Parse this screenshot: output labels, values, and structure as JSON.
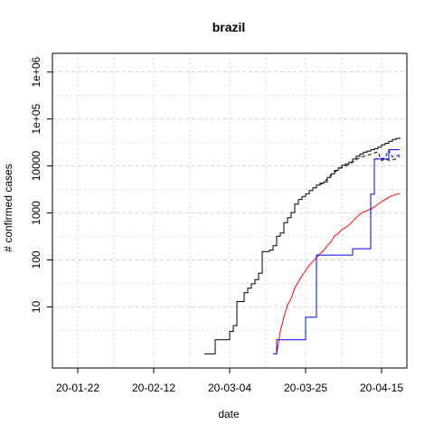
{
  "chart_data": {
    "type": "line",
    "title": "brazil",
    "xlabel": "date",
    "ylabel": "# confirmed cases",
    "x_ticks": [
      "20-01-22",
      "20-02-12",
      "20-03-04",
      "20-03-25",
      "20-04-15"
    ],
    "y_ticks": [
      "10",
      "100",
      "1000",
      "10000",
      "1e+05",
      "1e+06"
    ],
    "y_scale": "log",
    "ylim": [
      0.5,
      2500000
    ],
    "xlim": [
      "2020-01-22",
      "2020-04-20"
    ],
    "grid": true,
    "series": [
      {
        "color": "#000000",
        "style": "step",
        "points": [
          [
            "2020-02-26",
            1
          ],
          [
            "2020-02-29",
            2
          ],
          [
            "2020-03-04",
            3
          ],
          [
            "2020-03-05",
            4
          ],
          [
            "2020-03-06",
            13
          ],
          [
            "2020-03-07",
            13
          ],
          [
            "2020-03-08",
            20
          ],
          [
            "2020-03-09",
            25
          ],
          [
            "2020-03-10",
            31
          ],
          [
            "2020-03-11",
            38
          ],
          [
            "2020-03-12",
            52
          ],
          [
            "2020-03-13",
            151
          ],
          [
            "2020-03-14",
            151
          ],
          [
            "2020-03-15",
            162
          ],
          [
            "2020-03-16",
            200
          ],
          [
            "2020-03-17",
            321
          ],
          [
            "2020-03-18",
            372
          ],
          [
            "2020-03-19",
            621
          ],
          [
            "2020-03-20",
            793
          ],
          [
            "2020-03-21",
            1021
          ],
          [
            "2020-03-22",
            1546
          ],
          [
            "2020-03-23",
            1924
          ],
          [
            "2020-03-24",
            2247
          ],
          [
            "2020-03-25",
            2554
          ],
          [
            "2020-03-26",
            2985
          ],
          [
            "2020-03-27",
            3417
          ],
          [
            "2020-03-28",
            3904
          ],
          [
            "2020-03-29",
            4256
          ],
          [
            "2020-03-30",
            4579
          ],
          [
            "2020-03-31",
            5717
          ],
          [
            "2020-04-01",
            6836
          ],
          [
            "2020-04-02",
            8044
          ],
          [
            "2020-04-03",
            9056
          ],
          [
            "2020-04-04",
            10360
          ],
          [
            "2020-04-05",
            11130
          ],
          [
            "2020-04-06",
            12161
          ],
          [
            "2020-04-07",
            14034
          ],
          [
            "2020-04-08",
            16170
          ],
          [
            "2020-04-09",
            18092
          ],
          [
            "2020-04-10",
            19638
          ],
          [
            "2020-04-11",
            20727
          ],
          [
            "2020-04-12",
            22192
          ],
          [
            "2020-04-13",
            23430
          ],
          [
            "2020-04-14",
            25262
          ],
          [
            "2020-04-15",
            28320
          ],
          [
            "2020-04-16",
            30425
          ],
          [
            "2020-04-17",
            33682
          ],
          [
            "2020-04-18",
            36658
          ],
          [
            "2020-04-19",
            38654
          ],
          [
            "2020-04-20",
            40743
          ]
        ]
      },
      {
        "color": "#000000",
        "style": "dashed",
        "points": [
          [
            "2020-03-29",
            4050
          ],
          [
            "2020-03-30",
            4400
          ],
          [
            "2020-03-31",
            5400
          ],
          [
            "2020-04-01",
            6400
          ],
          [
            "2020-04-02",
            7400
          ],
          [
            "2020-04-03",
            8300
          ],
          [
            "2020-04-04",
            9400
          ],
          [
            "2020-04-05",
            10000
          ],
          [
            "2020-04-06",
            10700
          ],
          [
            "2020-04-07",
            12100
          ],
          [
            "2020-04-08",
            13600
          ],
          [
            "2020-04-09",
            15000
          ],
          [
            "2020-04-10",
            16000
          ],
          [
            "2020-04-11",
            17000
          ],
          [
            "2020-04-12",
            17700
          ],
          [
            "2020-04-13",
            19000
          ],
          [
            "2020-04-14",
            20000
          ],
          [
            "2020-04-15",
            13000
          ],
          [
            "2020-04-16",
            14000
          ],
          [
            "2020-04-17",
            13200
          ],
          [
            "2020-04-18",
            13500
          ],
          [
            "2020-04-19",
            14200
          ],
          [
            "2020-04-20",
            16000
          ]
        ]
      },
      {
        "color": "#ff0000",
        "style": "line",
        "points": [
          [
            "2020-03-17",
            1
          ],
          [
            "2020-03-18",
            3
          ],
          [
            "2020-03-19",
            6
          ],
          [
            "2020-03-20",
            11
          ],
          [
            "2020-03-21",
            15
          ],
          [
            "2020-03-22",
            25
          ],
          [
            "2020-03-23",
            34
          ],
          [
            "2020-03-24",
            46
          ],
          [
            "2020-03-25",
            59
          ],
          [
            "2020-03-26",
            77
          ],
          [
            "2020-03-27",
            92
          ],
          [
            "2020-03-28",
            111
          ],
          [
            "2020-03-29",
            136
          ],
          [
            "2020-03-30",
            159
          ],
          [
            "2020-03-31",
            201
          ],
          [
            "2020-04-01",
            240
          ],
          [
            "2020-04-02",
            324
          ],
          [
            "2020-04-03",
            359
          ],
          [
            "2020-04-04",
            445
          ],
          [
            "2020-04-05",
            486
          ],
          [
            "2020-04-06",
            553
          ],
          [
            "2020-04-07",
            667
          ],
          [
            "2020-04-08",
            800
          ],
          [
            "2020-04-09",
            941
          ],
          [
            "2020-04-10",
            1057
          ],
          [
            "2020-04-11",
            1124
          ],
          [
            "2020-04-12",
            1223
          ],
          [
            "2020-04-13",
            1328
          ],
          [
            "2020-04-14",
            1532
          ],
          [
            "2020-04-15",
            1736
          ],
          [
            "2020-04-16",
            1924
          ],
          [
            "2020-04-17",
            2141
          ],
          [
            "2020-04-18",
            2354
          ],
          [
            "2020-04-19",
            2462
          ],
          [
            "2020-04-20",
            2587
          ]
        ]
      },
      {
        "color": "#0000ff",
        "style": "step",
        "points": [
          [
            "2020-03-16",
            1
          ],
          [
            "2020-03-17",
            2
          ],
          [
            "2020-03-25",
            6
          ],
          [
            "2020-03-28",
            127
          ],
          [
            "2020-04-06",
            127
          ],
          [
            "2020-04-07",
            173
          ],
          [
            "2020-04-11",
            173
          ],
          [
            "2020-04-12",
            2500
          ],
          [
            "2020-04-13",
            14026
          ],
          [
            "2020-04-16",
            14026
          ],
          [
            "2020-04-17",
            22130
          ],
          [
            "2020-04-18",
            22130
          ],
          [
            "2020-04-20",
            22130
          ]
        ]
      },
      {
        "color": "#0000ff",
        "style": "dashed",
        "points": [
          [
            "2020-04-13",
            14000
          ],
          [
            "2020-04-15",
            14300
          ],
          [
            "2020-04-16",
            15000
          ],
          [
            "2020-04-17",
            22000
          ],
          [
            "2020-04-18",
            15500
          ],
          [
            "2020-04-19",
            16500
          ],
          [
            "2020-04-20",
            17000
          ]
        ]
      }
    ]
  }
}
